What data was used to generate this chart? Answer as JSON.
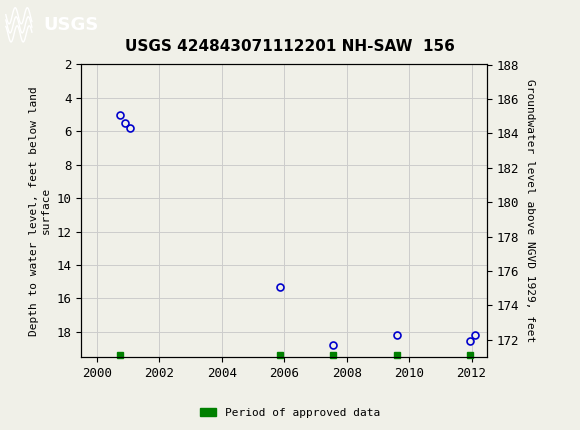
{
  "title": "USGS 424843071112201 NH-SAW  156",
  "header_color": "#1a6b3c",
  "left_ylabel_line1": "Depth to water level, feet below land",
  "left_ylabel_line2": "surface",
  "right_ylabel": "Groundwater level above NGVD 1929, feet",
  "xlim": [
    1999.5,
    2012.5
  ],
  "ylim_left_top": 2,
  "ylim_left_bottom": 19.5,
  "ylim_right_top": 188,
  "ylim_right_bottom": 171.0,
  "yticks_left": [
    2,
    4,
    6,
    8,
    10,
    12,
    14,
    16,
    18
  ],
  "yticks_right": [
    188,
    186,
    184,
    182,
    180,
    178,
    176,
    174,
    172
  ],
  "xticks": [
    2000,
    2002,
    2004,
    2006,
    2008,
    2010,
    2012
  ],
  "data_x": [
    2000.75,
    2000.9,
    2001.05,
    2005.85,
    2007.55,
    2009.6,
    2011.95,
    2012.1
  ],
  "data_y_left": [
    5.0,
    5.5,
    5.8,
    15.3,
    18.8,
    18.2,
    18.55,
    18.2
  ],
  "marker_color": "#0000cc",
  "marker_size": 5,
  "green_bar_x": [
    2000.75,
    2005.85,
    2007.55,
    2009.6,
    2011.95
  ],
  "grid_color": "#cccccc",
  "legend_label": "Period of approved data",
  "legend_color": "#008000",
  "background_color": "#f0f0e8",
  "font_color": "#000000"
}
